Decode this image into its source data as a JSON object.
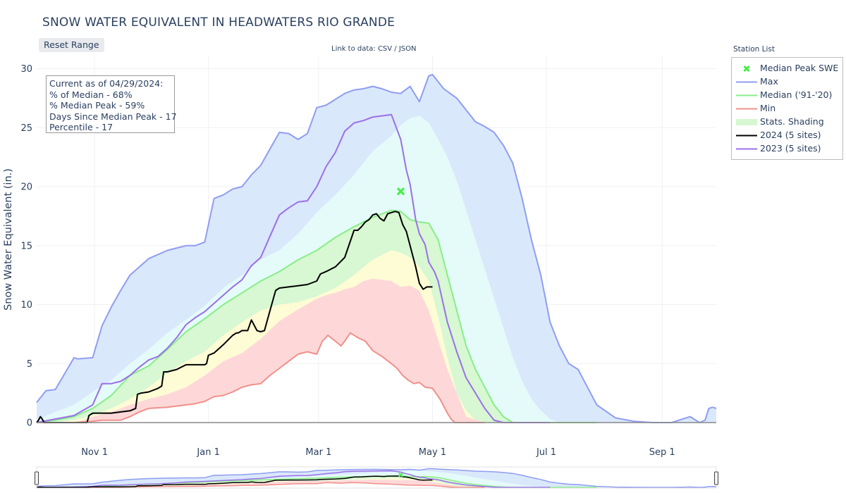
{
  "title": "SNOW WATER EQUIVALENT IN HEADWATERS RIO GRANDE",
  "reset_range_label": "Reset Range",
  "data_link_text": "Link to data: CSV / JSON",
  "station_list_label": "Station List",
  "status": {
    "line1": "Current as of 04/29/2024:",
    "line2": "% of Median - 68%",
    "line3": "% Median Peak - 59%",
    "line4": "Days Since Median Peak - 17",
    "line5": "Percentile - 17"
  },
  "legend": [
    {
      "label": "Median Peak SWE",
      "symbol": "x",
      "color": "#44ee44"
    },
    {
      "label": "Max",
      "symbol": "line",
      "color": "#8f9df2"
    },
    {
      "label": "Median ('91-'20)",
      "symbol": "line",
      "color": "#88ee88"
    },
    {
      "label": "Min",
      "symbol": "line",
      "color": "#f0908a"
    },
    {
      "label": "Stats. Shading",
      "symbol": "fill",
      "color": "#d6f7d2"
    },
    {
      "label": "2024 (5 sites)",
      "symbol": "line",
      "color": "#000000"
    },
    {
      "label": "2023 (5 sites)",
      "symbol": "line",
      "color": "#9b6fe8"
    }
  ],
  "chart_data": {
    "type": "area",
    "title": "SNOW WATER EQUIVALENT IN HEADWATERS RIO GRANDE",
    "ylabel": "Snow Water Equivalent (in.)",
    "xlabel": "",
    "xlim": [
      "Oct 1",
      "Sep 30"
    ],
    "ylim": [
      -1.8,
      31.2
    ],
    "yticks": [
      0,
      5,
      10,
      15,
      20,
      25,
      30
    ],
    "xticks": [
      {
        "label": "Nov  1",
        "day": 31
      },
      {
        "label": "Jan  1",
        "day": 92
      },
      {
        "label": "Mar  1",
        "day": 151
      },
      {
        "label": "May  1",
        "day": 212
      },
      {
        "label": "Jul  1",
        "day": 273
      },
      {
        "label": "Sep  1",
        "day": 335
      }
    ],
    "x_unit": "days since Oct 1",
    "grid": true,
    "legend_placement": "right",
    "median_peak": {
      "day": 195,
      "value": 19.6
    },
    "series": [
      {
        "name": "Max",
        "color": "#8f9df2",
        "x": [
          0,
          5,
          10,
          20,
          22,
          30,
          35,
          40,
          45,
          50,
          55,
          60,
          70,
          80,
          85,
          90,
          95,
          100,
          105,
          110,
          115,
          120,
          125,
          130,
          135,
          140,
          145,
          150,
          155,
          160,
          165,
          170,
          175,
          180,
          185,
          190,
          195,
          200,
          205,
          210,
          212,
          218,
          225,
          230,
          235,
          240,
          245,
          250,
          255,
          260,
          265,
          270,
          275,
          280,
          285,
          290,
          295,
          300,
          310,
          320,
          330,
          340,
          350,
          355,
          358,
          360,
          362,
          364
        ],
        "y": [
          1.7,
          2.7,
          2.8,
          5.5,
          5.4,
          5.5,
          8.2,
          9.8,
          11.2,
          12.5,
          13.2,
          13.9,
          14.6,
          15.0,
          15.0,
          15.3,
          19.0,
          19.3,
          19.8,
          20.0,
          21.0,
          21.8,
          23.2,
          24.6,
          24.5,
          24.0,
          24.5,
          26.7,
          26.9,
          27.4,
          27.9,
          28.2,
          28.3,
          28.5,
          28.3,
          28.0,
          27.9,
          28.5,
          27.2,
          29.4,
          29.5,
          28.3,
          27.5,
          26.5,
          25.5,
          25.1,
          24.6,
          23.5,
          22.0,
          19.0,
          15.5,
          12.5,
          8.5,
          6.5,
          5.0,
          4.5,
          3.0,
          1.5,
          0.4,
          0.1,
          0.0,
          0.0,
          0.5,
          0.0,
          0.2,
          1.2,
          1.3,
          1.2
        ]
      },
      {
        "name": "Q80",
        "color": "#e4fbf9",
        "x": [
          0,
          10,
          20,
          30,
          40,
          50,
          60,
          70,
          80,
          90,
          100,
          110,
          120,
          130,
          140,
          150,
          160,
          170,
          180,
          190,
          195,
          200,
          205,
          210,
          215,
          220,
          225,
          230,
          235,
          240,
          245,
          250,
          255,
          260,
          265,
          270,
          275,
          280,
          290,
          300
        ],
        "y": [
          0.2,
          0.9,
          1.5,
          2.6,
          3.6,
          5.0,
          6.2,
          7.6,
          8.7,
          9.9,
          11.4,
          12.5,
          13.8,
          14.6,
          16.0,
          17.8,
          19.3,
          21.0,
          23.0,
          24.3,
          25.2,
          25.8,
          26.0,
          25.4,
          24.0,
          22.5,
          20.5,
          18.0,
          15.5,
          13.0,
          10.5,
          8.0,
          5.5,
          3.5,
          2.0,
          1.0,
          0.3,
          0.0,
          0.0,
          0.0
        ]
      },
      {
        "name": "Median ('91-'20)",
        "color": "#88ee88",
        "x": [
          0,
          10,
          20,
          30,
          40,
          50,
          60,
          70,
          80,
          90,
          100,
          110,
          120,
          130,
          140,
          150,
          160,
          170,
          180,
          190,
          195,
          200,
          205,
          210,
          215,
          220,
          225,
          230,
          235,
          240,
          245,
          250,
          255,
          260,
          265,
          270,
          275,
          280,
          290,
          300
        ],
        "y": [
          0.0,
          0.2,
          0.5,
          1.2,
          2.3,
          4.0,
          4.8,
          6.2,
          7.7,
          8.8,
          10.0,
          11.0,
          12.0,
          12.8,
          13.8,
          14.6,
          15.7,
          16.6,
          17.4,
          18.0,
          17.9,
          17.2,
          17.0,
          16.9,
          15.5,
          12.5,
          9.5,
          6.5,
          4.5,
          3.0,
          1.5,
          0.5,
          0.0,
          0.0,
          0.0,
          0.0,
          0.0,
          0.0,
          0.0,
          0.0
        ]
      },
      {
        "name": "Q20",
        "color": "#fefcd4",
        "x": [
          0,
          10,
          20,
          30,
          40,
          50,
          60,
          70,
          80,
          90,
          100,
          110,
          120,
          130,
          140,
          150,
          160,
          170,
          180,
          190,
          195,
          200,
          205,
          210,
          215,
          220,
          225,
          230,
          235,
          240,
          250
        ],
        "y": [
          0.0,
          0.0,
          0.2,
          0.6,
          1.2,
          2.0,
          3.0,
          4.2,
          5.2,
          6.0,
          7.4,
          8.5,
          9.5,
          10.0,
          10.2,
          10.7,
          11.4,
          12.5,
          13.8,
          14.6,
          14.4,
          14.0,
          13.2,
          12.0,
          9.0,
          5.5,
          2.5,
          1.0,
          0.2,
          0.0,
          0.0
        ]
      },
      {
        "name": "Q10",
        "color": "#fed8d8",
        "x": [
          0,
          20,
          25,
          30,
          40,
          50,
          60,
          70,
          80,
          90,
          100,
          110,
          120,
          130,
          140,
          150,
          155,
          160,
          165,
          170,
          175,
          180,
          185,
          190,
          195,
          200,
          205,
          210,
          215,
          220,
          225,
          230,
          240
        ],
        "y": [
          0.0,
          0.0,
          0.2,
          0.5,
          0.9,
          1.5,
          2.0,
          2.4,
          3.0,
          4.0,
          5.2,
          5.9,
          7.1,
          8.6,
          9.6,
          10.5,
          10.8,
          11.0,
          11.3,
          11.5,
          12.0,
          12.2,
          12.1,
          12.0,
          11.5,
          11.6,
          11.2,
          9.5,
          7.0,
          4.5,
          2.5,
          0.5,
          0.0
        ]
      },
      {
        "name": "Min",
        "color": "#f0908a",
        "x": [
          0,
          20,
          30,
          35,
          40,
          45,
          50,
          55,
          60,
          70,
          80,
          85,
          90,
          95,
          100,
          105,
          110,
          115,
          120,
          125,
          130,
          135,
          140,
          145,
          150,
          153,
          156,
          160,
          163,
          165,
          168,
          172,
          176,
          180,
          185,
          190,
          193,
          196,
          199,
          202,
          205,
          208,
          212,
          216,
          218,
          220,
          222,
          224,
          230,
          240
        ],
        "y": [
          0.0,
          0.0,
          0.1,
          0.2,
          0.2,
          0.2,
          0.5,
          0.9,
          1.2,
          1.3,
          1.5,
          1.6,
          1.8,
          2.2,
          2.3,
          2.6,
          3.0,
          3.2,
          3.3,
          4.0,
          4.6,
          5.2,
          5.8,
          6.0,
          5.8,
          6.9,
          7.4,
          6.9,
          6.5,
          6.9,
          7.6,
          7.2,
          6.9,
          6.1,
          5.6,
          5.0,
          4.6,
          4.0,
          3.6,
          3.3,
          3.4,
          3.0,
          2.9,
          2.0,
          1.4,
          0.8,
          0.3,
          0.0,
          0.0,
          0.0
        ]
      },
      {
        "name": "2023 (5 sites)",
        "color": "#9b6fe8",
        "x": [
          0,
          10,
          20,
          30,
          35,
          40,
          45,
          50,
          55,
          60,
          65,
          70,
          75,
          80,
          85,
          90,
          95,
          100,
          105,
          110,
          115,
          120,
          125,
          130,
          135,
          140,
          145,
          150,
          155,
          160,
          165,
          170,
          175,
          180,
          185,
          190,
          195,
          198,
          200,
          203,
          205,
          208,
          210,
          213,
          215,
          218,
          220,
          225,
          230,
          235,
          240,
          245,
          250,
          255,
          258,
          260,
          265,
          270,
          275
        ],
        "y": [
          0.0,
          0.3,
          0.6,
          1.5,
          3.3,
          3.3,
          3.5,
          4.0,
          4.7,
          5.3,
          5.6,
          6.3,
          7.2,
          8.3,
          8.9,
          9.4,
          10.1,
          10.8,
          11.5,
          12.1,
          13.3,
          14.0,
          15.8,
          17.6,
          18.2,
          18.7,
          18.8,
          20.0,
          21.7,
          22.9,
          24.7,
          25.4,
          25.6,
          25.9,
          26.0,
          26.1,
          24.0,
          21.4,
          20.2,
          17.2,
          16.0,
          15.1,
          13.6,
          12.8,
          12.0,
          9.9,
          8.5,
          6.0,
          3.8,
          2.5,
          1.2,
          0.2,
          0.0,
          0.0,
          0.0,
          0.0,
          0.0,
          0.0,
          0.0
        ]
      },
      {
        "name": "2024 (5 sites)",
        "color": "#000000",
        "x": [
          0,
          1,
          2,
          3,
          4,
          5,
          10,
          20,
          27,
          28,
          30,
          35,
          40,
          45,
          50,
          53,
          54,
          56,
          60,
          65,
          67,
          68,
          70,
          75,
          80,
          85,
          90,
          91,
          92,
          95,
          100,
          105,
          107,
          108,
          110,
          113,
          115,
          118,
          120,
          122,
          125,
          128,
          130,
          135,
          140,
          145,
          150,
          152,
          155,
          160,
          165,
          170,
          172,
          174,
          176,
          178,
          180,
          182,
          184,
          186,
          188,
          190,
          192,
          194,
          196,
          198,
          200,
          203,
          205,
          207,
          209,
          212
        ],
        "y": [
          0.0,
          0.2,
          0.5,
          0.3,
          0.0,
          0.0,
          0.0,
          0.0,
          0.0,
          0.6,
          0.8,
          0.8,
          0.8,
          0.9,
          1.0,
          1.2,
          2.4,
          2.5,
          2.6,
          2.9,
          3.1,
          4.3,
          4.3,
          4.5,
          4.9,
          4.9,
          4.9,
          5.0,
          5.7,
          5.9,
          6.6,
          7.4,
          7.6,
          7.6,
          7.8,
          7.8,
          8.7,
          7.8,
          7.7,
          7.8,
          9.5,
          11.2,
          11.4,
          11.5,
          11.6,
          11.7,
          12.0,
          12.6,
          12.8,
          13.2,
          14.0,
          16.3,
          16.3,
          16.6,
          17.0,
          17.2,
          17.6,
          17.7,
          17.3,
          17.1,
          17.7,
          17.8,
          17.9,
          17.8,
          16.8,
          16.2,
          15.0,
          13.2,
          11.8,
          11.3,
          11.5,
          11.5
        ]
      }
    ]
  }
}
